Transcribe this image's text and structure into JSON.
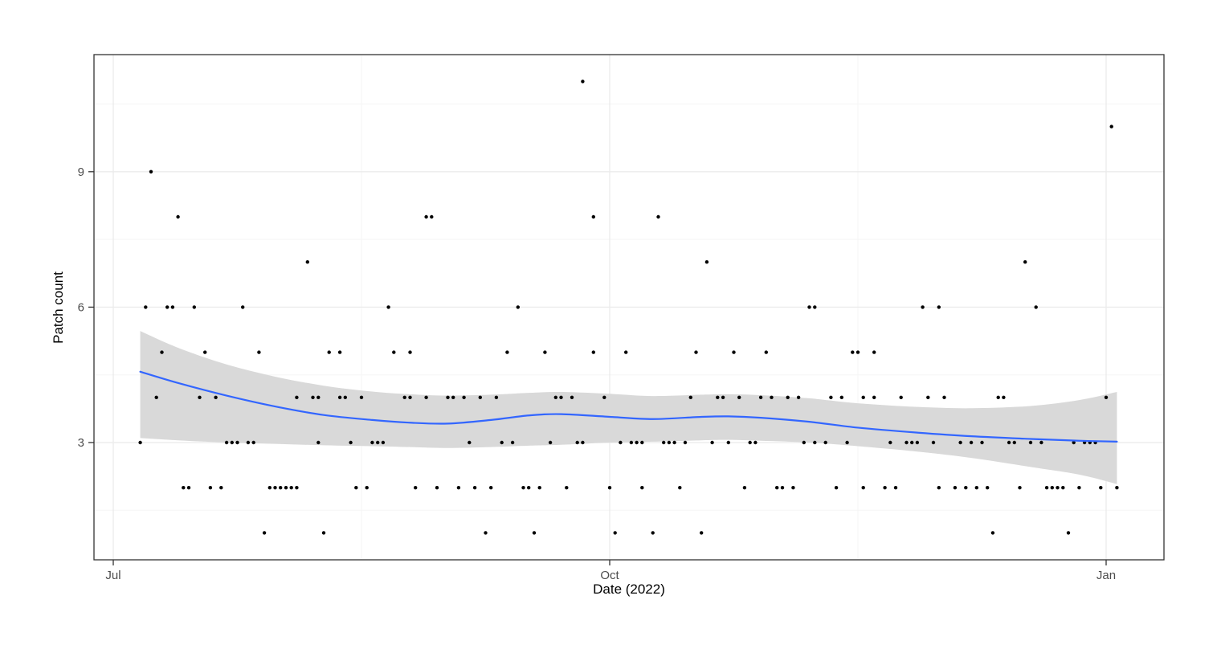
{
  "chart_data": {
    "type": "scatter",
    "title": "",
    "xlabel": "Date (2022)",
    "ylabel": "Patch count",
    "x_unit": "days since Jul 1, 2022",
    "x_axis": {
      "tick_labels": [
        "Jul",
        "Oct",
        "Jan"
      ],
      "tick_days": [
        0,
        92,
        184
      ],
      "minor_grid_days": [
        46,
        138
      ],
      "range_days": [
        -3.6,
        196.7
      ]
    },
    "y_axis": {
      "tick_labels": [
        "9",
        "6",
        "3"
      ],
      "tick_values": [
        9,
        6,
        3
      ],
      "minor_grid_values": [
        10.5,
        7.5,
        4.5,
        1.5
      ],
      "range": [
        0.4,
        11.6
      ]
    },
    "grid": "on",
    "legend": "none",
    "points_by_value": [
      {
        "value": 11,
        "days": [
          87
        ]
      },
      {
        "value": 10,
        "days": [
          185
        ]
      },
      {
        "value": 9,
        "days": [
          7
        ]
      },
      {
        "value": 8,
        "days": [
          12,
          58,
          59,
          89,
          101
        ]
      },
      {
        "value": 7,
        "days": [
          36,
          110,
          169
        ]
      },
      {
        "value": 6,
        "days": [
          6,
          10,
          11,
          15,
          24,
          51,
          75,
          129,
          130,
          150,
          153,
          171
        ]
      },
      {
        "value": 5,
        "days": [
          9,
          17,
          27,
          40,
          42,
          52,
          55,
          73,
          80,
          89,
          95,
          108,
          115,
          121,
          137,
          138,
          141
        ]
      },
      {
        "value": 4,
        "days": [
          8,
          16,
          19,
          34,
          37,
          38,
          42,
          43,
          46,
          54,
          55,
          58,
          62,
          63,
          65,
          68,
          71,
          82,
          83,
          85,
          91,
          107,
          112,
          113,
          116,
          120,
          122,
          125,
          127,
          133,
          135,
          139,
          141,
          146,
          151,
          154,
          164,
          165,
          184
        ]
      },
      {
        "value": 3,
        "days": [
          5,
          21,
          22,
          23,
          25,
          26,
          38,
          44,
          48,
          49,
          50,
          66,
          72,
          74,
          81,
          86,
          87,
          94,
          96,
          97,
          98,
          102,
          103,
          104,
          106,
          111,
          114,
          118,
          119,
          128,
          130,
          132,
          136,
          144,
          147,
          148,
          149,
          152,
          157,
          159,
          161,
          166,
          167,
          170,
          172,
          178,
          180,
          181,
          182
        ]
      },
      {
        "value": 2,
        "days": [
          13,
          14,
          18,
          20,
          29,
          30,
          31,
          32,
          33,
          34,
          45,
          47,
          56,
          60,
          64,
          67,
          70,
          76,
          77,
          79,
          84,
          92,
          98,
          105,
          117,
          123,
          124,
          126,
          134,
          139,
          143,
          145,
          153,
          156,
          158,
          160,
          162,
          168,
          173,
          174,
          175,
          176,
          179,
          183,
          186
        ]
      },
      {
        "value": 1,
        "days": [
          28,
          39,
          69,
          78,
          93,
          100,
          109,
          163,
          177
        ]
      }
    ],
    "smooth_line": {
      "name": "loess smooth",
      "days": [
        5,
        12,
        21,
        30,
        39,
        48,
        55,
        62,
        70,
        77,
        83,
        92,
        100,
        109,
        114,
        120,
        129,
        138,
        149,
        159,
        170,
        179,
        186
      ],
      "values": [
        4.57,
        4.32,
        4.04,
        3.8,
        3.61,
        3.5,
        3.44,
        3.42,
        3.5,
        3.6,
        3.63,
        3.57,
        3.52,
        3.57,
        3.58,
        3.55,
        3.46,
        3.33,
        3.22,
        3.14,
        3.08,
        3.04,
        3.02
      ]
    },
    "ci_band": {
      "name": "confidence band",
      "days": [
        5,
        12,
        21,
        30,
        39,
        48,
        55,
        62,
        70,
        77,
        83,
        92,
        100,
        109,
        114,
        120,
        129,
        138,
        149,
        159,
        170,
        179,
        186
      ],
      "upper": [
        5.47,
        5.1,
        4.73,
        4.46,
        4.26,
        4.13,
        4.07,
        4.04,
        4.06,
        4.1,
        4.12,
        4.08,
        4.03,
        4.06,
        4.07,
        4.05,
        3.98,
        3.87,
        3.79,
        3.76,
        3.81,
        3.94,
        4.12
      ],
      "lower": [
        3.1,
        3.05,
        3.0,
        2.97,
        2.94,
        2.92,
        2.9,
        2.88,
        2.9,
        2.93,
        2.95,
        3.0,
        3.02,
        3.05,
        3.06,
        3.04,
        3.0,
        2.92,
        2.8,
        2.66,
        2.46,
        2.29,
        2.08
      ]
    },
    "colors": {
      "point": "#000000",
      "smooth_line": "#3366FF",
      "ci_band": "#D9D9D9",
      "grid_major": "#EBEBEB",
      "grid_minor": "#F5F5F5",
      "panel_border": "#333333",
      "tick_mark": "#333333",
      "tick_label": "#4D4D4D",
      "axis_title": "#000000",
      "background": "#FFFFFF"
    }
  }
}
